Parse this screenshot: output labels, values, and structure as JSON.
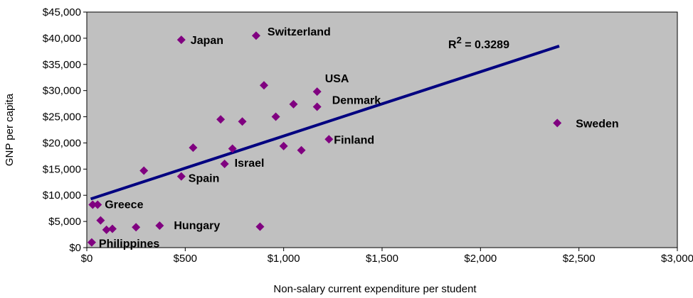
{
  "chart_data": {
    "type": "scatter",
    "title": "",
    "xlabel": "Non-salary current expenditure per student",
    "ylabel": "GNP per capita",
    "xlim": [
      0,
      3000
    ],
    "ylim": [
      0,
      45000
    ],
    "x_ticks": [
      0,
      500,
      1000,
      1500,
      2000,
      2500,
      3000
    ],
    "x_tick_labels": [
      "$0",
      "$500",
      "$1,000",
      "$1,500",
      "$2,000",
      "$2,500",
      "$3,000"
    ],
    "y_ticks": [
      0,
      5000,
      10000,
      15000,
      20000,
      25000,
      30000,
      35000,
      40000,
      45000
    ],
    "y_tick_labels": [
      "$0",
      "$5,000",
      "$10,000",
      "$15,000",
      "$20,000",
      "$25,000",
      "$30,000",
      "$35,000",
      "$40,000",
      "$45,000"
    ],
    "grid": false,
    "legend": false,
    "colors": {
      "plot_background": "#c0c0c0",
      "marker": "#800080",
      "trendline": "#000080"
    },
    "points": [
      {
        "x": 25,
        "y": 1000,
        "label": "Philippines"
      },
      {
        "x": 30,
        "y": 8200,
        "label": ""
      },
      {
        "x": 55,
        "y": 8200,
        "label": "Greece"
      },
      {
        "x": 70,
        "y": 5200,
        "label": ""
      },
      {
        "x": 100,
        "y": 3400,
        "label": ""
      },
      {
        "x": 130,
        "y": 3600,
        "label": ""
      },
      {
        "x": 250,
        "y": 3900,
        "label": ""
      },
      {
        "x": 370,
        "y": 4200,
        "label": "Hungary"
      },
      {
        "x": 290,
        "y": 14700,
        "label": ""
      },
      {
        "x": 480,
        "y": 13600,
        "label": "Spain"
      },
      {
        "x": 480,
        "y": 39700,
        "label": "Japan"
      },
      {
        "x": 540,
        "y": 19100,
        "label": ""
      },
      {
        "x": 680,
        "y": 24500,
        "label": ""
      },
      {
        "x": 700,
        "y": 16000,
        "label": "Israel"
      },
      {
        "x": 740,
        "y": 18900,
        "label": ""
      },
      {
        "x": 790,
        "y": 24100,
        "label": ""
      },
      {
        "x": 860,
        "y": 40500,
        "label": "Switzerland"
      },
      {
        "x": 880,
        "y": 4000,
        "label": ""
      },
      {
        "x": 900,
        "y": 31000,
        "label": ""
      },
      {
        "x": 960,
        "y": 25000,
        "label": ""
      },
      {
        "x": 1000,
        "y": 19400,
        "label": ""
      },
      {
        "x": 1050,
        "y": 27400,
        "label": ""
      },
      {
        "x": 1090,
        "y": 18600,
        "label": ""
      },
      {
        "x": 1170,
        "y": 29800,
        "label": "USA"
      },
      {
        "x": 1170,
        "y": 26900,
        "label": "Denmark"
      },
      {
        "x": 1230,
        "y": 20700,
        "label": "Finland"
      },
      {
        "x": 2390,
        "y": 23800,
        "label": "Sweden"
      }
    ],
    "trendline": {
      "x": [
        20,
        2400
      ],
      "y": [
        9300,
        38500
      ]
    },
    "annotation": {
      "text": "R2 = 0.3289",
      "prefix": "R",
      "superscript": "2",
      "suffix": " = 0.3289"
    }
  }
}
